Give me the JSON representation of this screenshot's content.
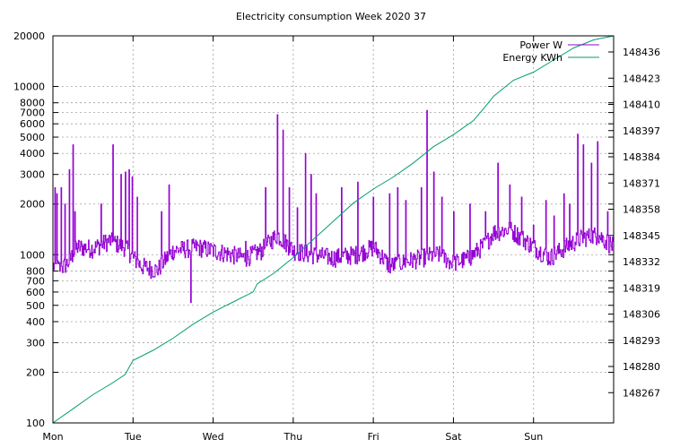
{
  "chart_data": {
    "type": "line",
    "title": "Electricity consumption Week 2020 37",
    "x_ticks": [
      "Mon",
      "Tue",
      "Wed",
      "Thu",
      "Fri",
      "Sat",
      "Sun"
    ],
    "x_range_days": [
      0,
      7
    ],
    "y_left": {
      "scale": "log",
      "range": [
        100,
        20000
      ],
      "ticks": [
        {
          "v": 100,
          "label": "100"
        },
        {
          "v": 200,
          "label": "200"
        },
        {
          "v": 300,
          "label": "300"
        },
        {
          "v": 400,
          "label": "400"
        },
        {
          "v": 500,
          "label": "500"
        },
        {
          "v": 600,
          "label": "600"
        },
        {
          "v": 700,
          "label": "700"
        },
        {
          "v": 800,
          "label": "800"
        },
        {
          "v": 1000,
          "label": "1000"
        },
        {
          "v": 2000,
          "label": "2000"
        },
        {
          "v": 3000,
          "label": "3000"
        },
        {
          "v": 4000,
          "label": "4000"
        },
        {
          "v": 5000,
          "label": "5000"
        },
        {
          "v": 6000,
          "label": "6000"
        },
        {
          "v": 7000,
          "label": "7000"
        },
        {
          "v": 8000,
          "label": "8000"
        },
        {
          "v": 10000,
          "label": "10000"
        },
        {
          "v": 20000,
          "label": "20000"
        }
      ]
    },
    "y_right": {
      "scale": "linear",
      "range": [
        148252,
        148444
      ],
      "ticks": [
        148267,
        148280,
        148293,
        148306,
        148319,
        148332,
        148345,
        148358,
        148371,
        148384,
        148397,
        148410,
        148423,
        148436
      ]
    },
    "grid": true,
    "legend_position": "top-right",
    "series": [
      {
        "name": "Power W",
        "color": "#9400d3",
        "axis": "left",
        "baseline": [
          [
            0,
            850
          ],
          [
            0.1,
            820
          ],
          [
            0.2,
            900
          ],
          [
            0.3,
            1100
          ],
          [
            0.5,
            1080
          ],
          [
            0.7,
            1200
          ],
          [
            0.9,
            1100
          ],
          [
            1.0,
            950
          ],
          [
            1.1,
            850
          ],
          [
            1.3,
            800
          ],
          [
            1.5,
            1050
          ],
          [
            1.8,
            1100
          ],
          [
            2.0,
            1050
          ],
          [
            2.2,
            1000
          ],
          [
            2.4,
            950
          ],
          [
            2.6,
            1050
          ],
          [
            2.8,
            1300
          ],
          [
            3.0,
            1050
          ],
          [
            3.2,
            1000
          ],
          [
            3.5,
            950
          ],
          [
            3.8,
            1000
          ],
          [
            4.0,
            1100
          ],
          [
            4.2,
            850
          ],
          [
            4.4,
            900
          ],
          [
            4.6,
            950
          ],
          [
            4.8,
            1000
          ],
          [
            5.0,
            880
          ],
          [
            5.2,
            950
          ],
          [
            5.4,
            1150
          ],
          [
            5.5,
            1350
          ],
          [
            5.7,
            1400
          ],
          [
            6.0,
            1100
          ],
          [
            6.2,
            950
          ],
          [
            6.4,
            1100
          ],
          [
            6.6,
            1250
          ],
          [
            6.8,
            1300
          ],
          [
            7.0,
            1100
          ]
        ],
        "spikes": [
          [
            0.02,
            2500
          ],
          [
            0.05,
            2300
          ],
          [
            0.1,
            2500
          ],
          [
            0.15,
            2000
          ],
          [
            0.2,
            3200
          ],
          [
            0.25,
            4500
          ],
          [
            0.27,
            1800
          ],
          [
            0.6,
            2000
          ],
          [
            0.75,
            4500
          ],
          [
            0.85,
            3000
          ],
          [
            0.9,
            3100
          ],
          [
            0.95,
            3200
          ],
          [
            0.99,
            2900
          ],
          [
            1.05,
            2200
          ],
          [
            1.35,
            1800
          ],
          [
            1.45,
            2600
          ],
          [
            1.72,
            520
          ],
          [
            2.4,
            1200
          ],
          [
            2.65,
            2500
          ],
          [
            2.8,
            6800
          ],
          [
            2.87,
            5500
          ],
          [
            2.95,
            2500
          ],
          [
            3.05,
            1900
          ],
          [
            3.15,
            4000
          ],
          [
            3.22,
            3000
          ],
          [
            3.28,
            2300
          ],
          [
            3.6,
            2500
          ],
          [
            3.8,
            2700
          ],
          [
            4.0,
            2200
          ],
          [
            4.2,
            2300
          ],
          [
            4.3,
            2500
          ],
          [
            4.4,
            2100
          ],
          [
            4.6,
            2500
          ],
          [
            4.67,
            7200
          ],
          [
            4.75,
            3100
          ],
          [
            4.85,
            2200
          ],
          [
            5.0,
            1800
          ],
          [
            5.2,
            2000
          ],
          [
            5.4,
            1800
          ],
          [
            5.55,
            3500
          ],
          [
            5.7,
            2600
          ],
          [
            5.85,
            2200
          ],
          [
            6.0,
            1500
          ],
          [
            6.15,
            2100
          ],
          [
            6.25,
            1700
          ],
          [
            6.38,
            2300
          ],
          [
            6.45,
            2000
          ],
          [
            6.55,
            5200
          ],
          [
            6.62,
            4500
          ],
          [
            6.72,
            3500
          ],
          [
            6.8,
            4700
          ],
          [
            6.92,
            1800
          ],
          [
            7.0,
            3000
          ]
        ]
      },
      {
        "name": "Energy KWh",
        "color": "#009e73",
        "axis": "right",
        "points": [
          [
            0,
            148252
          ],
          [
            0.25,
            148259
          ],
          [
            0.5,
            148266
          ],
          [
            0.75,
            148272
          ],
          [
            0.9,
            148276
          ],
          [
            1.0,
            148283
          ],
          [
            1.25,
            148288
          ],
          [
            1.5,
            148294
          ],
          [
            1.75,
            148301
          ],
          [
            2.0,
            148307
          ],
          [
            2.25,
            148312
          ],
          [
            2.5,
            148317
          ],
          [
            2.55,
            148321
          ],
          [
            2.75,
            148326
          ],
          [
            3.0,
            148334
          ],
          [
            3.25,
            148343
          ],
          [
            3.5,
            148352
          ],
          [
            3.75,
            148361
          ],
          [
            4.0,
            148368
          ],
          [
            4.25,
            148374
          ],
          [
            4.5,
            148381
          ],
          [
            4.75,
            148389
          ],
          [
            5.0,
            148395
          ],
          [
            5.25,
            148402
          ],
          [
            5.4,
            148409
          ],
          [
            5.5,
            148414
          ],
          [
            5.75,
            148422
          ],
          [
            6.0,
            148426
          ],
          [
            6.25,
            148432
          ],
          [
            6.5,
            148438
          ],
          [
            6.75,
            148442
          ],
          [
            7.0,
            148444
          ]
        ]
      }
    ]
  }
}
